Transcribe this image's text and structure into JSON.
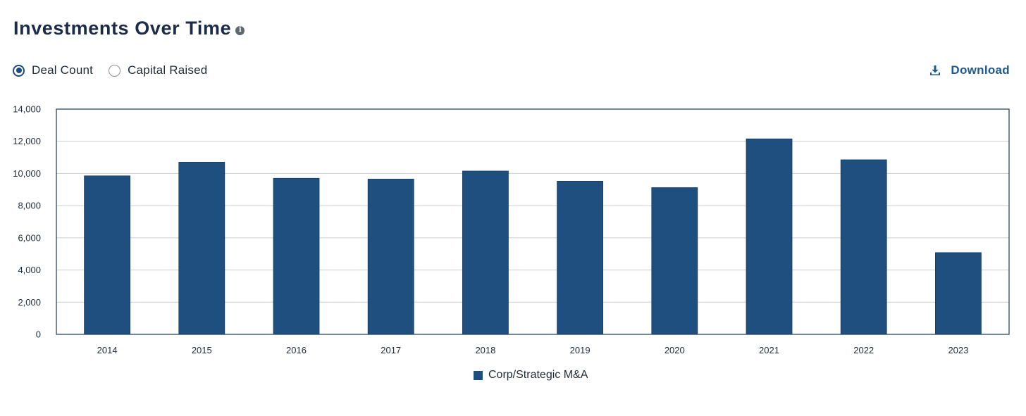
{
  "header": {
    "title": "Investments Over Time",
    "info_icon": "info-icon"
  },
  "metric_toggle": {
    "options": [
      {
        "label": "Deal Count",
        "selected": true
      },
      {
        "label": "Capital Raised",
        "selected": false
      }
    ]
  },
  "download": {
    "label": "Download",
    "icon": "download-icon"
  },
  "colors": {
    "bar": "#1e4f7f",
    "accent": "#1c5a91",
    "frame": "#1b3a56",
    "grid": "#c9cdd2"
  },
  "chart_data": {
    "type": "bar",
    "categories": [
      "2014",
      "2015",
      "2016",
      "2017",
      "2018",
      "2019",
      "2020",
      "2021",
      "2022",
      "2023"
    ],
    "series": [
      {
        "name": "Corp/Strategic M&A",
        "values": [
          9850,
          10700,
          9700,
          9650,
          10150,
          9520,
          9120,
          12150,
          10850,
          5080
        ]
      }
    ],
    "ylim": [
      0,
      14000
    ],
    "yticks": [
      0,
      2000,
      4000,
      6000,
      8000,
      10000,
      12000,
      14000
    ],
    "ytick_labels": [
      "0",
      "2,000",
      "4,000",
      "6,000",
      "8,000",
      "10,000",
      "12,000",
      "14,000"
    ],
    "grid": true,
    "legend_position": "bottom-center"
  }
}
